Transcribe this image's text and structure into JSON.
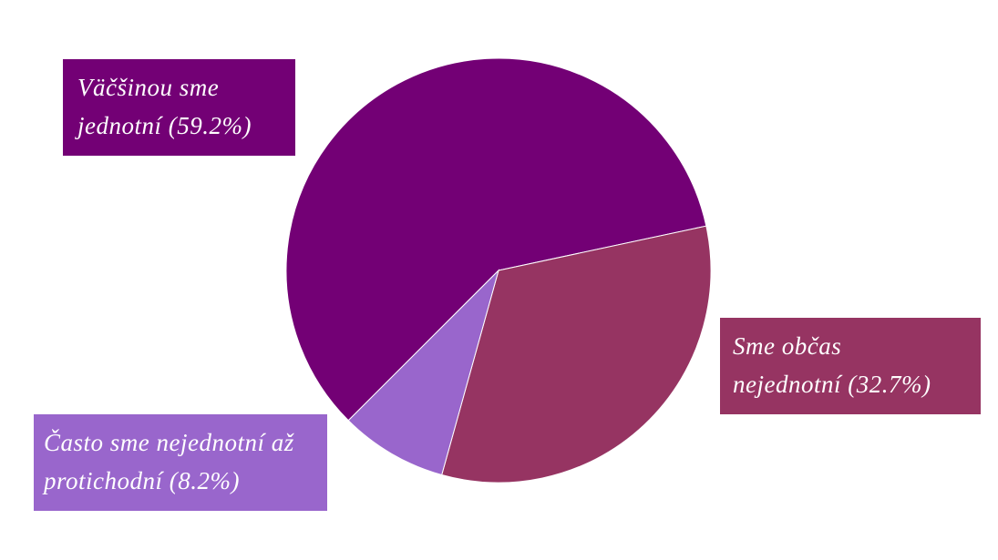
{
  "chart_data": {
    "type": "pie",
    "values": [
      59.2,
      32.7,
      8.2
    ],
    "value_labels": [
      "Väčšinou sme jednotní (59.2%)",
      "Sme občas nejednotní (32.7%)",
      "Často sme nejednotní až protichodní (8.2%)"
    ],
    "colors": [
      "#730075",
      "#963462",
      "#9966cc"
    ]
  }
}
